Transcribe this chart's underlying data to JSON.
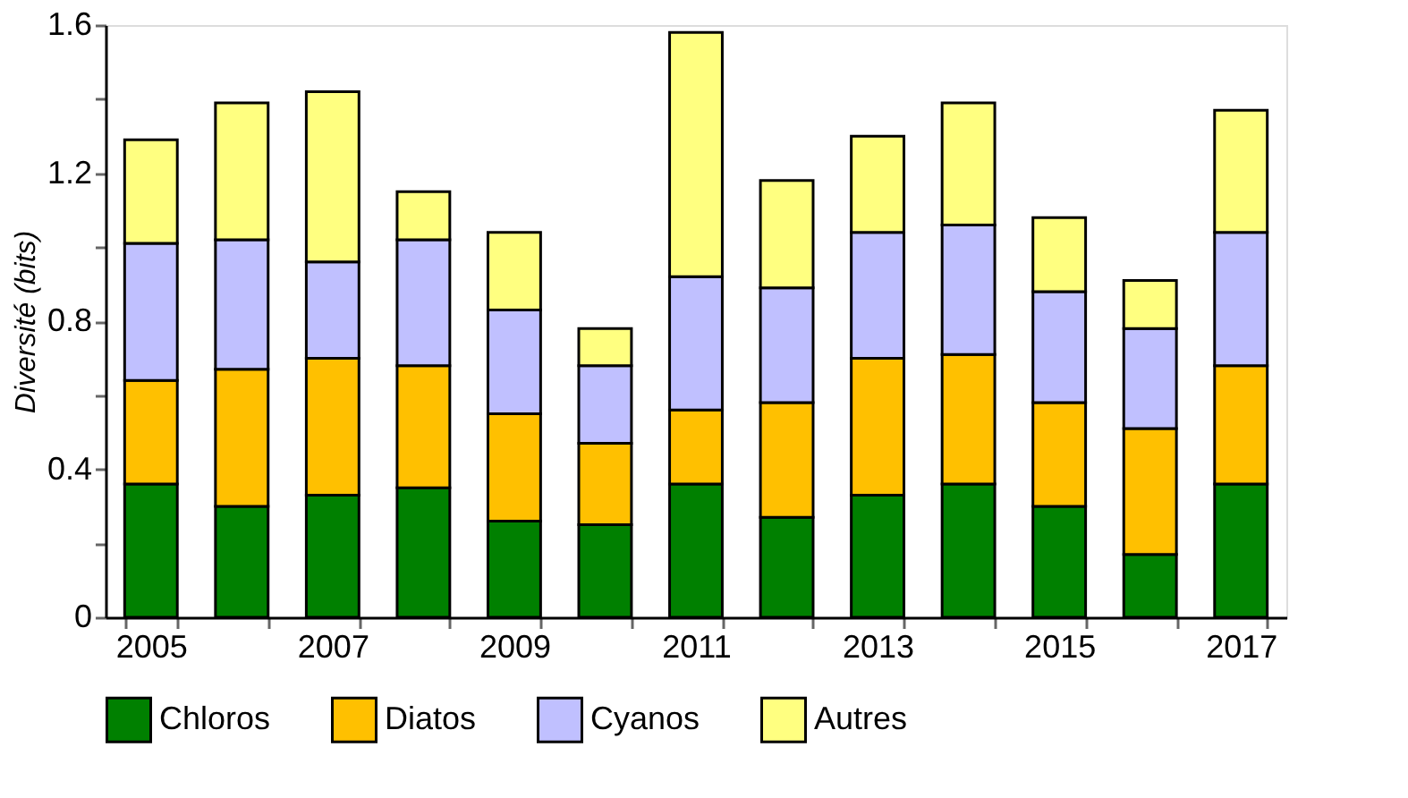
{
  "chart_data": {
    "type": "bar",
    "stacked": true,
    "ylabel": "Diversité (bits)",
    "categories": [
      "2005",
      null,
      "2007",
      null,
      "2009",
      null,
      "2011",
      null,
      "2013",
      null,
      "2015",
      null,
      "2017"
    ],
    "series": [
      {
        "name": "Chloros",
        "color": "#008000",
        "values": [
          0.36,
          0.3,
          0.33,
          0.35,
          0.26,
          0.25,
          0.36,
          0.27,
          0.33,
          0.36,
          0.3,
          0.17,
          0.36
        ]
      },
      {
        "name": "Diatos",
        "color": "#ffc000",
        "values": [
          0.28,
          0.37,
          0.37,
          0.33,
          0.29,
          0.22,
          0.2,
          0.31,
          0.37,
          0.35,
          0.28,
          0.34,
          0.32
        ]
      },
      {
        "name": "Cyanos",
        "color": "#c0c0ff",
        "values": [
          0.37,
          0.35,
          0.26,
          0.34,
          0.28,
          0.21,
          0.36,
          0.31,
          0.34,
          0.35,
          0.3,
          0.27,
          0.36
        ]
      },
      {
        "name": "Autres",
        "color": "#ffff80",
        "values": [
          0.28,
          0.37,
          0.46,
          0.13,
          0.21,
          0.1,
          0.66,
          0.29,
          0.26,
          0.33,
          0.2,
          0.13,
          0.33
        ]
      }
    ],
    "ylim": [
      0,
      1.6
    ],
    "yticks": [
      0,
      {
        "value": 0.2,
        "label": null
      },
      0.4,
      {
        "value": 0.6,
        "label": null
      },
      0.8,
      {
        "value": 1.0,
        "label": null
      },
      1.2,
      {
        "value": 1.4,
        "label": null
      },
      1.6
    ],
    "grid": false,
    "legend": "bottom"
  }
}
